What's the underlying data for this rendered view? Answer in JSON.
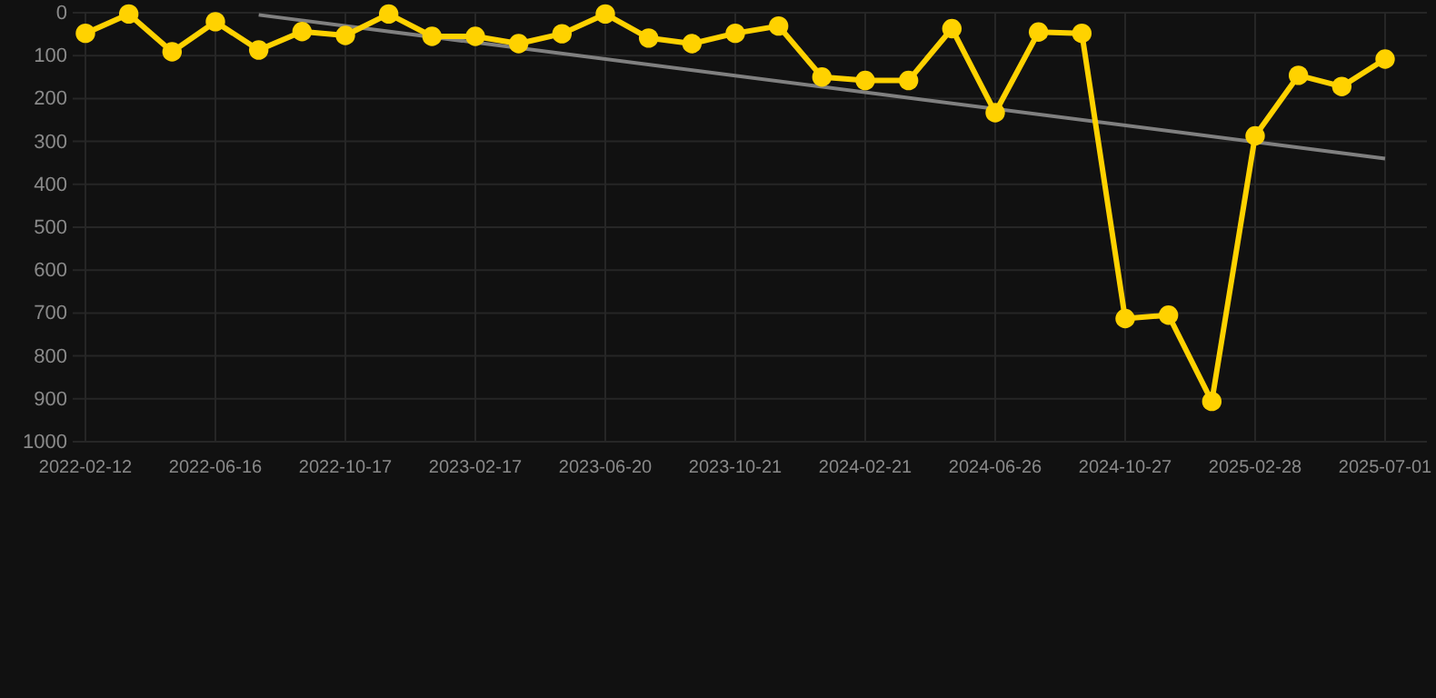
{
  "chart_data": {
    "type": "line",
    "categories": [
      "2022-02-12",
      null,
      null,
      "2022-06-16",
      null,
      null,
      "2022-10-17",
      null,
      null,
      "2023-02-17",
      null,
      null,
      "2023-06-20",
      null,
      null,
      "2023-10-21",
      null,
      null,
      "2024-02-21",
      null,
      null,
      "2024-06-26",
      null,
      null,
      "2024-10-27",
      null,
      null,
      "2025-02-28",
      null,
      null,
      "2025-07-01"
    ],
    "series": [
      {
        "color": "#ffd200",
        "marker": "circle",
        "values": [
          48,
          3,
          91,
          21,
          87,
          44,
          53,
          3,
          55,
          55,
          72,
          49,
          3,
          59,
          72,
          48,
          31,
          150,
          158,
          158,
          37,
          233,
          45,
          48,
          713,
          705,
          906,
          287,
          146,
          172,
          108
        ]
      },
      {
        "color": "#808080",
        "marker": "none",
        "values": [
          null,
          null,
          null,
          null,
          5,
          null,
          null,
          null,
          null,
          null,
          null,
          null,
          null,
          null,
          null,
          null,
          null,
          null,
          null,
          null,
          null,
          null,
          null,
          null,
          null,
          null,
          null,
          null,
          null,
          null,
          340
        ]
      }
    ],
    "ylim": [
      1000,
      0
    ],
    "yticks": [
      0,
      100,
      200,
      300,
      400,
      500,
      600,
      700,
      800,
      900,
      1000
    ],
    "grid": true,
    "line_style": "solid"
  }
}
